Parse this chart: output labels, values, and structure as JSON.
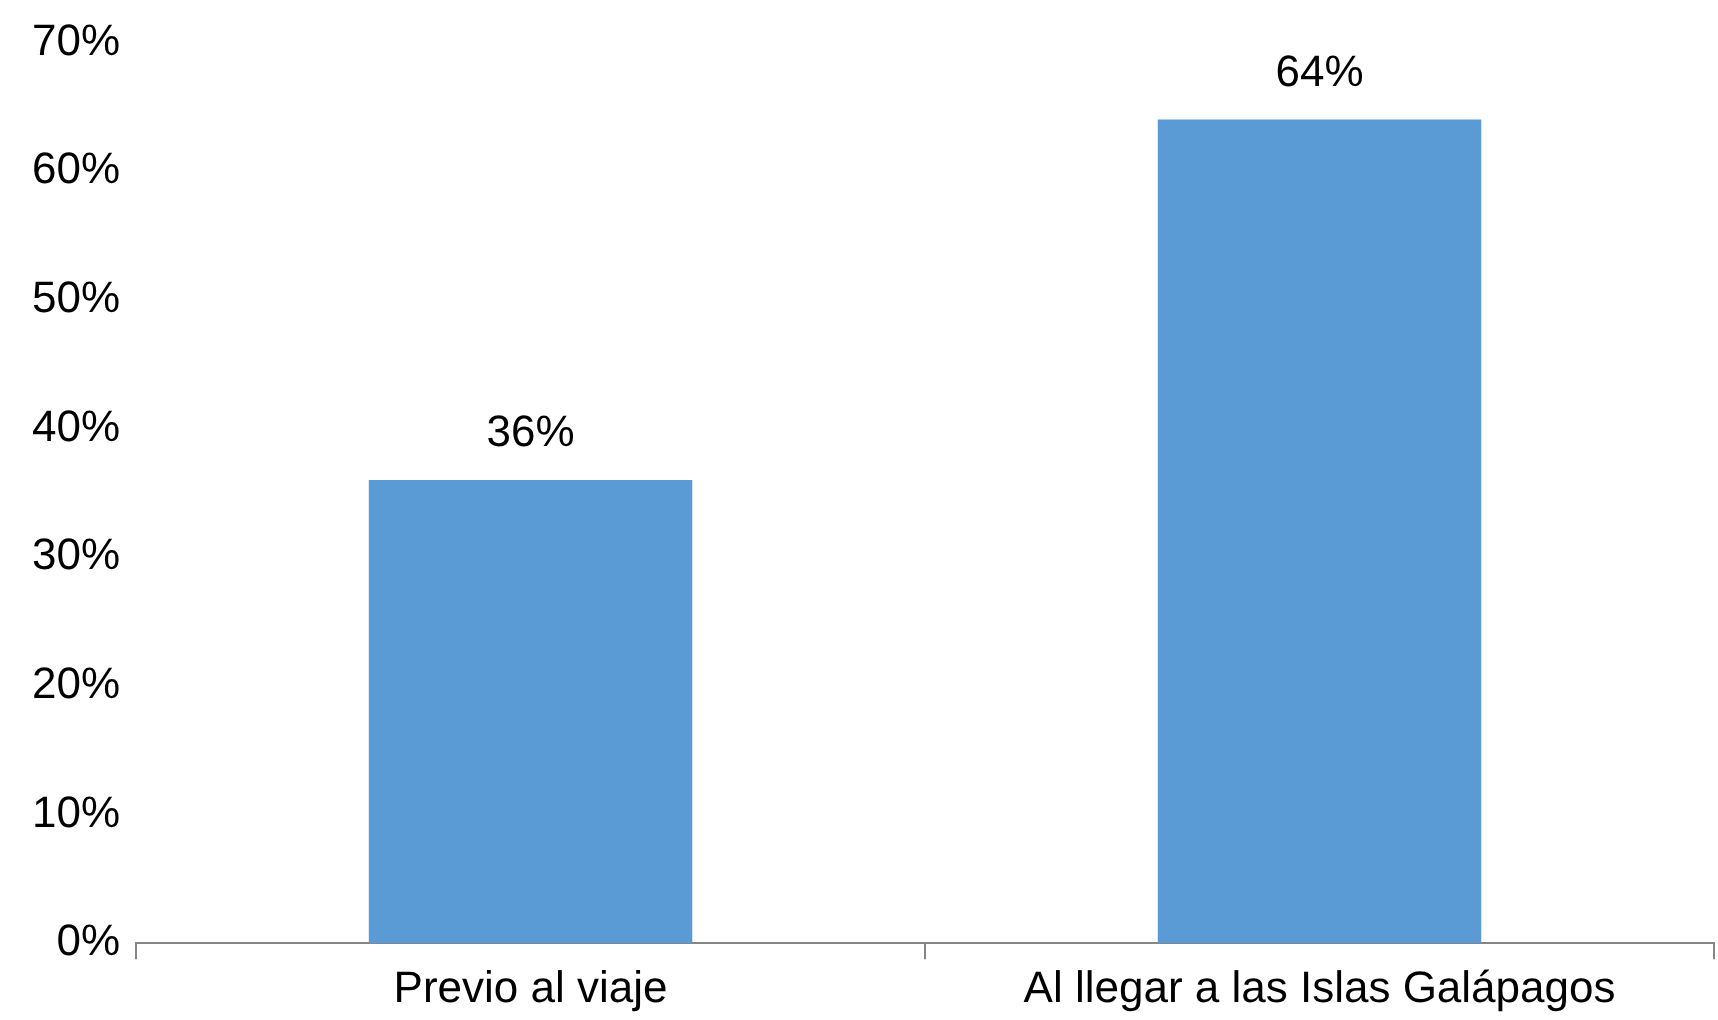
{
  "chart_data": {
    "type": "bar",
    "categories": [
      "Previo al viaje",
      "Al llegar a las Islas Galápagos"
    ],
    "values": [
      36,
      64
    ],
    "color": "#5b9bd5",
    "value_labels": [
      "36%",
      "64%"
    ],
    "ylim": [
      0,
      70
    ],
    "yticks": [
      {
        "value": 0,
        "label": "0%"
      },
      {
        "value": 10,
        "label": "10%"
      },
      {
        "value": 20,
        "label": "20%"
      },
      {
        "value": 30,
        "label": "30%"
      },
      {
        "value": 40,
        "label": "40%"
      },
      {
        "value": 50,
        "label": "50%"
      },
      {
        "value": 60,
        "label": "60%"
      },
      {
        "value": 70,
        "label": "70%"
      }
    ],
    "grid": false,
    "legend": false
  }
}
